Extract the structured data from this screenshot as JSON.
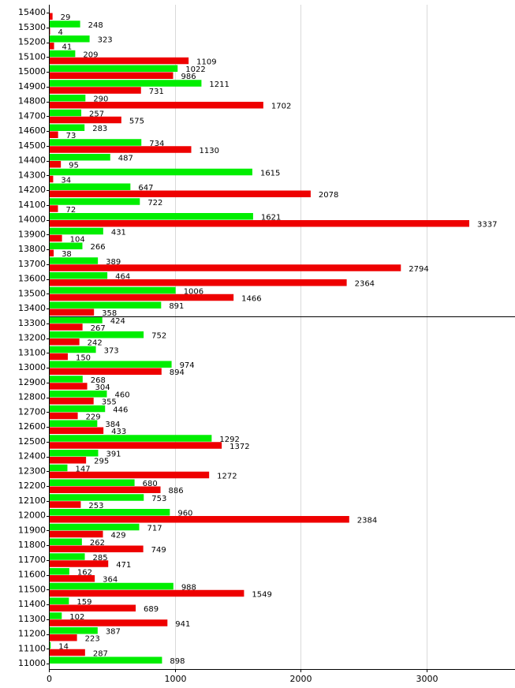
{
  "chart_data": {
    "type": "bar",
    "orientation": "horizontal",
    "title": "",
    "xlabel": "",
    "ylabel": "",
    "xlim": [
      0,
      3700
    ],
    "x_ticks": [
      0,
      1000,
      2000,
      3000
    ],
    "grid": "vertical",
    "legend": "none",
    "categories": [
      "15400",
      "15300",
      "15200",
      "15100",
      "15000",
      "14900",
      "14800",
      "14700",
      "14600",
      "14500",
      "14400",
      "14300",
      "14200",
      "14100",
      "14000",
      "13900",
      "13800",
      "13700",
      "13600",
      "13500",
      "13400",
      "13300",
      "13200",
      "13100",
      "13000",
      "12900",
      "12800",
      "12700",
      "12600",
      "12500",
      "12400",
      "12300",
      "12200",
      "12100",
      "12000",
      "11900",
      "11800",
      "11700",
      "11600",
      "11500",
      "11400",
      "11300",
      "11200",
      "11100",
      "11000"
    ],
    "series": [
      {
        "color": "#00ee00",
        "values": [
          null,
          248,
          323,
          209,
          1022,
          1211,
          290,
          257,
          283,
          734,
          487,
          1615,
          647,
          722,
          1621,
          431,
          266,
          389,
          464,
          1006,
          891,
          424,
          752,
          373,
          974,
          268,
          460,
          446,
          384,
          1292,
          391,
          147,
          680,
          753,
          960,
          717,
          262,
          285,
          162,
          988,
          159,
          102,
          387,
          14,
          898
        ]
      },
      {
        "color": "#ee0000",
        "values": [
          29,
          4,
          41,
          1109,
          986,
          731,
          1702,
          575,
          73,
          1130,
          95,
          34,
          2078,
          72,
          3337,
          104,
          38,
          2794,
          2364,
          1466,
          358,
          267,
          242,
          150,
          894,
          304,
          355,
          229,
          433,
          1372,
          295,
          1272,
          886,
          253,
          2384,
          429,
          749,
          471,
          364,
          1549,
          689,
          941,
          223,
          287,
          null
        ]
      }
    ],
    "reference_line_between": [
      "13400",
      "13300"
    ]
  }
}
